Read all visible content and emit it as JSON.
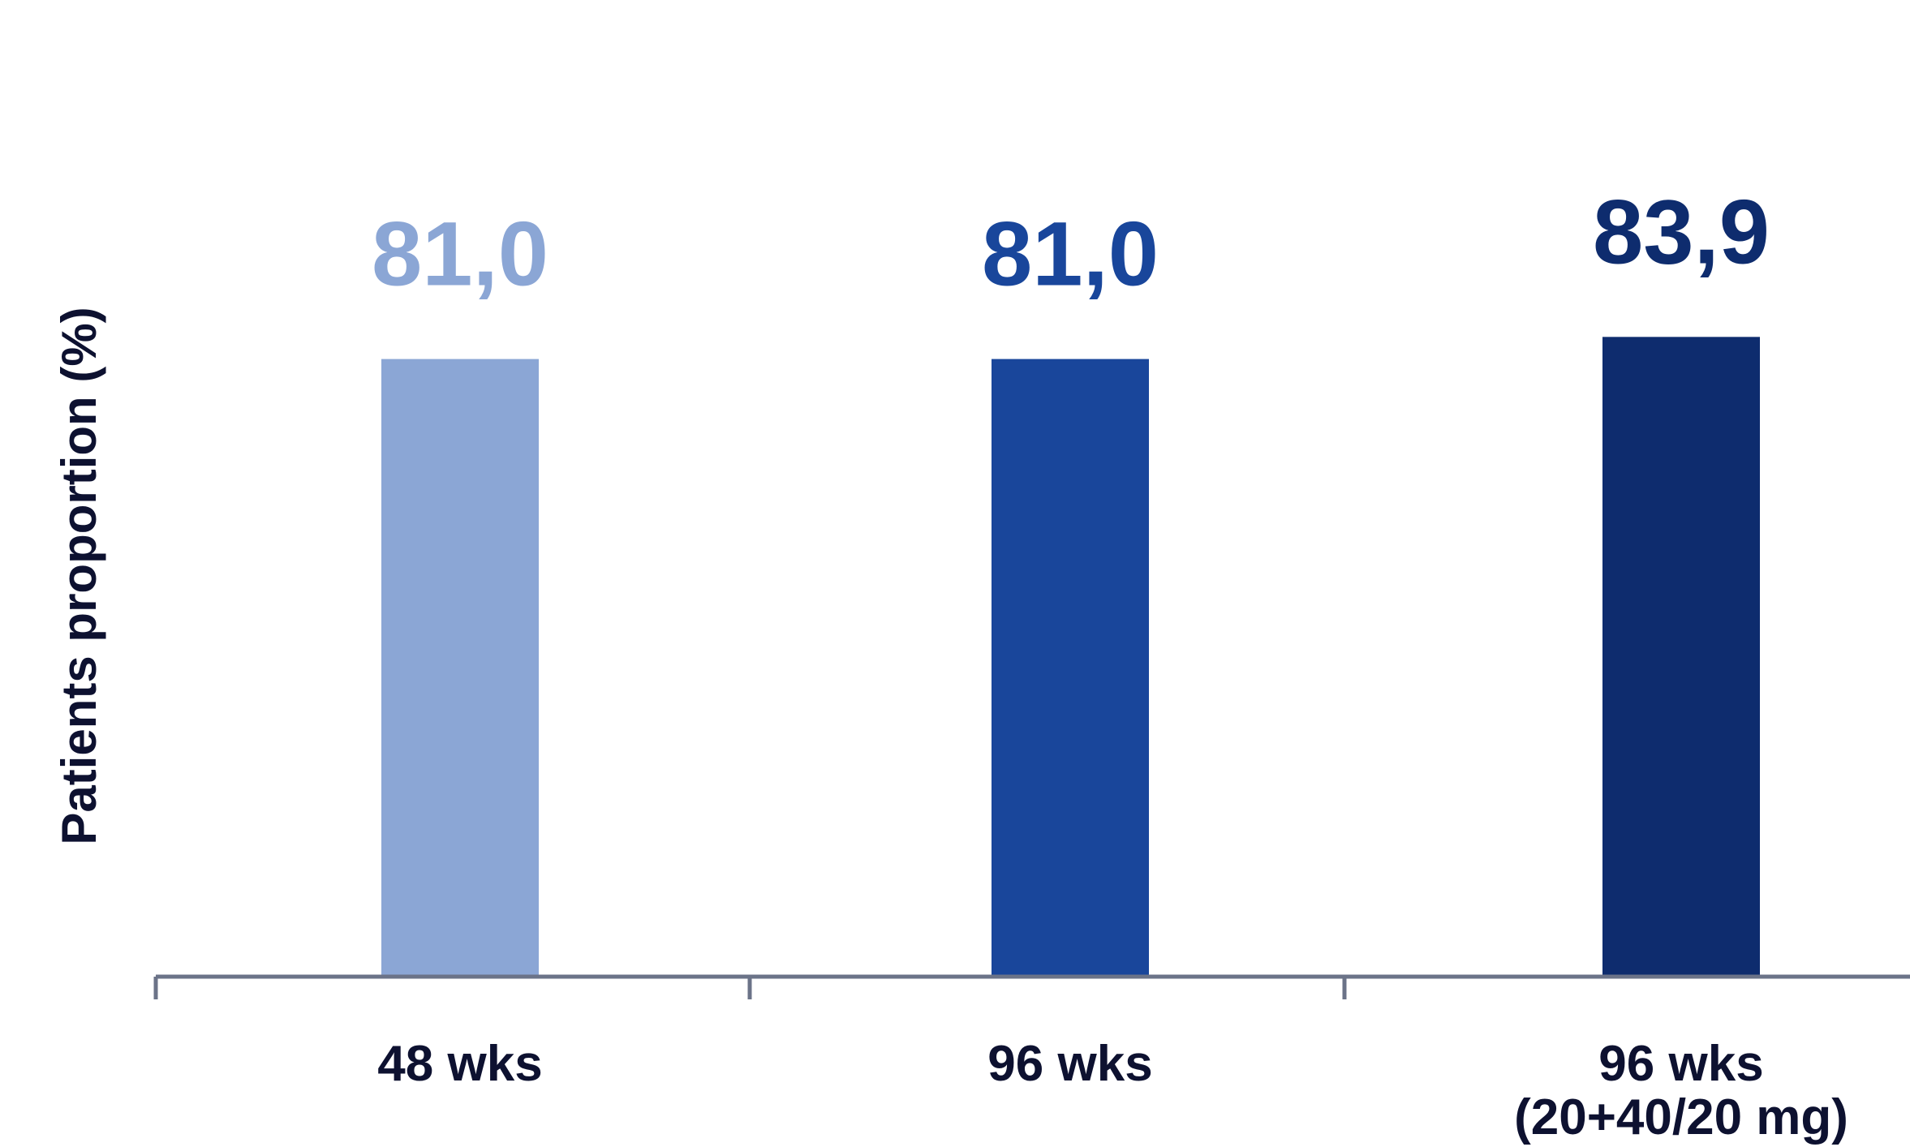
{
  "chart_data": {
    "type": "bar",
    "categories": [
      "48 wks",
      "96 wks",
      "96 wks\n(20+40/20 mg)"
    ],
    "values": [
      81.0,
      81.0,
      83.9
    ],
    "value_labels": [
      "81,0",
      "81,0",
      "83,9"
    ],
    "bar_colors": [
      "#8ba6d5",
      "#19469b",
      "#0e2c6e"
    ],
    "ylabel": "Patients  proportion (%)",
    "ylim": [
      0,
      100
    ],
    "grid": false,
    "legend": "none"
  },
  "colors": {
    "axis": "#6b7388",
    "text": "#0d1130"
  }
}
